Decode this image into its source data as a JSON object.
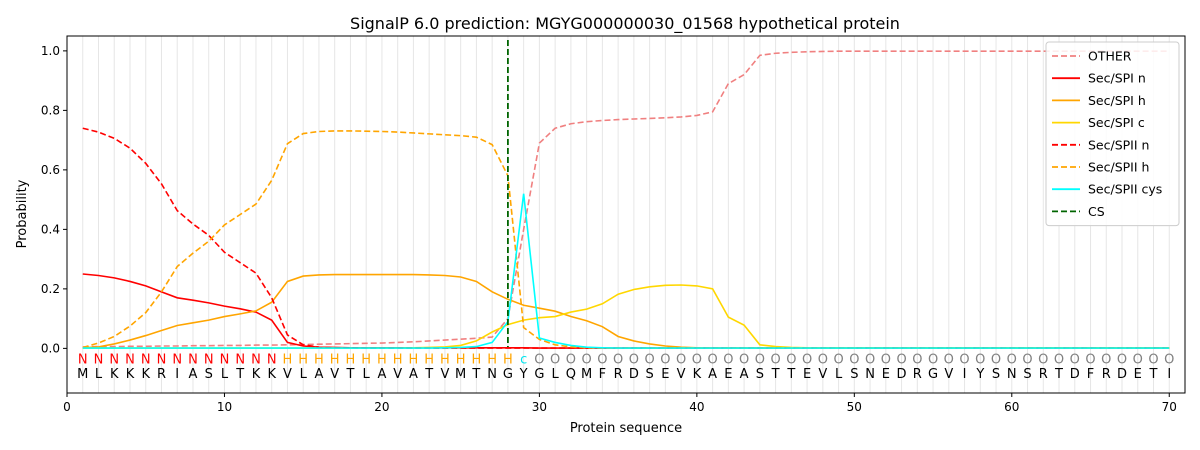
{
  "chart_data": {
    "type": "line",
    "title": "SignalP 6.0 prediction: MGYG000000030_01568 hypothetical protein",
    "xlabel": "Protein sequence",
    "ylabel": "Probability",
    "xlim": [
      0,
      71
    ],
    "ylim": [
      -0.15,
      1.05
    ],
    "xticks": [
      0,
      10,
      20,
      30,
      40,
      50,
      60,
      70
    ],
    "yticks": [
      0.0,
      0.2,
      0.4,
      0.6,
      0.8,
      1.0
    ],
    "vertical_grid_every_position": true,
    "legend_position": "top-right",
    "cleavage_site": 28,
    "sequence": [
      "M",
      "L",
      "K",
      "K",
      "K",
      "R",
      "I",
      "A",
      "S",
      "L",
      "T",
      "K",
      "K",
      "V",
      "L",
      "A",
      "V",
      "T",
      "L",
      "A",
      "V",
      "A",
      "T",
      "V",
      "M",
      "T",
      "N",
      "G",
      "Y",
      "G",
      "L",
      "Q",
      "M",
      "F",
      "R",
      "D",
      "S",
      "E",
      "V",
      "K",
      "A",
      "E",
      "A",
      "S",
      "T",
      "T",
      "E",
      "V",
      "L",
      "S",
      "N",
      "E",
      "D",
      "R",
      "G",
      "V",
      "I",
      "Y",
      "S",
      "N",
      "S",
      "R",
      "T",
      "D",
      "F",
      "R",
      "D",
      "E",
      "T",
      "I"
    ],
    "labels": [
      "N",
      "N",
      "N",
      "N",
      "N",
      "N",
      "N",
      "N",
      "N",
      "N",
      "N",
      "N",
      "N",
      "H",
      "H",
      "H",
      "H",
      "H",
      "H",
      "H",
      "H",
      "H",
      "H",
      "H",
      "H",
      "H",
      "H",
      "H",
      "C",
      "O",
      "O",
      "O",
      "O",
      "O",
      "O",
      "O",
      "O",
      "O",
      "O",
      "O",
      "O",
      "O",
      "O",
      "O",
      "O",
      "O",
      "O",
      "O",
      "O",
      "O",
      "O",
      "O",
      "O",
      "O",
      "O",
      "O",
      "O",
      "O",
      "O",
      "O",
      "O",
      "O",
      "O",
      "O",
      "O",
      "O",
      "O",
      "O",
      "O",
      "O"
    ],
    "label_colors": {
      "N": "#ff0000",
      "H": "#ffa500",
      "C": "#00e5ee",
      "O": "#808080"
    },
    "series": [
      {
        "name": "OTHER",
        "color": "#f08080",
        "dash": "6,3",
        "values": [
          0.005,
          0.006,
          0.006,
          0.007,
          0.007,
          0.008,
          0.008,
          0.009,
          0.009,
          0.01,
          0.01,
          0.011,
          0.011,
          0.012,
          0.013,
          0.014,
          0.015,
          0.016,
          0.017,
          0.018,
          0.02,
          0.022,
          0.025,
          0.028,
          0.031,
          0.034,
          0.038,
          0.1,
          0.4,
          0.69,
          0.74,
          0.755,
          0.762,
          0.766,
          0.769,
          0.771,
          0.773,
          0.775,
          0.778,
          0.783,
          0.795,
          0.89,
          0.92,
          0.985,
          0.992,
          0.995,
          0.997,
          0.998,
          0.999,
          0.999,
          0.999,
          0.999,
          0.999,
          0.999,
          0.999,
          0.999,
          0.999,
          0.999,
          0.999,
          0.999,
          0.999,
          0.999,
          0.999,
          0.999,
          0.999,
          0.999,
          0.999,
          0.999,
          0.999,
          0.999
        ]
      },
      {
        "name": "Sec/SPI n",
        "color": "#ff0000",
        "dash": "",
        "values": [
          0.25,
          0.245,
          0.237,
          0.225,
          0.21,
          0.19,
          0.17,
          0.162,
          0.153,
          0.142,
          0.133,
          0.122,
          0.095,
          0.02,
          0.008,
          0.004,
          0.003,
          0.002,
          0.002,
          0.002,
          0.002,
          0.002,
          0.002,
          0.002,
          0.002,
          0.002,
          0.002,
          0.002,
          0.002,
          0.001,
          0.001,
          0.001,
          0.001,
          0.001,
          0.001,
          0.001,
          0.001,
          0.001,
          0.001,
          0.001,
          0.001,
          0.001,
          0.001,
          0.001,
          0.001,
          0.001,
          0.001,
          0.001,
          0.001,
          0.001,
          0.001,
          0.001,
          0.001,
          0.001,
          0.001,
          0.001,
          0.001,
          0.001,
          0.001,
          0.001,
          0.001,
          0.001,
          0.001,
          0.001,
          0.001,
          0.001,
          0.001,
          0.001,
          0.001,
          0.001
        ]
      },
      {
        "name": "Sec/SPI h",
        "color": "#ffa500",
        "dash": "",
        "values": [
          0.002,
          0.005,
          0.015,
          0.028,
          0.043,
          0.06,
          0.077,
          0.086,
          0.095,
          0.107,
          0.116,
          0.126,
          0.155,
          0.225,
          0.243,
          0.247,
          0.248,
          0.248,
          0.248,
          0.248,
          0.248,
          0.248,
          0.247,
          0.245,
          0.24,
          0.225,
          0.19,
          0.165,
          0.145,
          0.135,
          0.125,
          0.107,
          0.093,
          0.073,
          0.04,
          0.025,
          0.015,
          0.008,
          0.004,
          0.002,
          0.001,
          0.001,
          0.001,
          0.001,
          0.001,
          0.001,
          0.001,
          0.001,
          0.001,
          0.001,
          0.001,
          0.001,
          0.001,
          0.001,
          0.001,
          0.001,
          0.001,
          0.001,
          0.001,
          0.001,
          0.001,
          0.001,
          0.001,
          0.001,
          0.001,
          0.001,
          0.001,
          0.001,
          0.001,
          0.001
        ]
      },
      {
        "name": "Sec/SPI c",
        "color": "#ffd700",
        "dash": "",
        "values": [
          0.001,
          0.001,
          0.001,
          0.001,
          0.001,
          0.001,
          0.001,
          0.001,
          0.001,
          0.001,
          0.001,
          0.001,
          0.001,
          0.001,
          0.001,
          0.001,
          0.001,
          0.001,
          0.001,
          0.001,
          0.001,
          0.002,
          0.003,
          0.005,
          0.01,
          0.025,
          0.055,
          0.08,
          0.095,
          0.103,
          0.107,
          0.122,
          0.132,
          0.15,
          0.182,
          0.198,
          0.207,
          0.212,
          0.213,
          0.21,
          0.2,
          0.105,
          0.078,
          0.012,
          0.006,
          0.003,
          0.002,
          0.001,
          0.001,
          0.001,
          0.001,
          0.001,
          0.001,
          0.001,
          0.001,
          0.001,
          0.001,
          0.001,
          0.001,
          0.001,
          0.001,
          0.001,
          0.001,
          0.001,
          0.001,
          0.001,
          0.001,
          0.001,
          0.001,
          0.001
        ]
      },
      {
        "name": "Sec/SPII n",
        "color": "#ff0000",
        "dash": "6,3",
        "values": [
          0.74,
          0.727,
          0.706,
          0.673,
          0.622,
          0.553,
          0.463,
          0.418,
          0.38,
          0.323,
          0.288,
          0.253,
          0.17,
          0.045,
          0.012,
          0.004,
          0.002,
          0.002,
          0.001,
          0.001,
          0.001,
          0.001,
          0.001,
          0.001,
          0.001,
          0.001,
          0.001,
          0.001,
          0.001,
          0.001,
          0.001,
          0.001,
          0.001,
          0.001,
          0.001,
          0.001,
          0.001,
          0.001,
          0.001,
          0.001,
          0.001,
          0.001,
          0.001,
          0.001,
          0.001,
          0.001,
          0.001,
          0.001,
          0.001,
          0.001,
          0.001,
          0.001,
          0.001,
          0.001,
          0.001,
          0.001,
          0.001,
          0.001,
          0.001,
          0.001,
          0.001,
          0.001,
          0.001,
          0.001,
          0.001,
          0.001,
          0.001,
          0.001,
          0.001,
          0.001
        ]
      },
      {
        "name": "Sec/SPII h",
        "color": "#ffa500",
        "dash": "6,3",
        "values": [
          0.003,
          0.018,
          0.04,
          0.075,
          0.12,
          0.19,
          0.275,
          0.32,
          0.36,
          0.415,
          0.45,
          0.485,
          0.565,
          0.688,
          0.722,
          0.729,
          0.731,
          0.731,
          0.73,
          0.729,
          0.727,
          0.724,
          0.721,
          0.718,
          0.715,
          0.71,
          0.685,
          0.58,
          0.07,
          0.03,
          0.012,
          0.005,
          0.002,
          0.001,
          0.001,
          0.001,
          0.001,
          0.001,
          0.001,
          0.001,
          0.001,
          0.001,
          0.001,
          0.001,
          0.001,
          0.001,
          0.001,
          0.001,
          0.001,
          0.001,
          0.001,
          0.001,
          0.001,
          0.001,
          0.001,
          0.001,
          0.001,
          0.001,
          0.001,
          0.001,
          0.001,
          0.001,
          0.001,
          0.001,
          0.001,
          0.001,
          0.001,
          0.001,
          0.001,
          0.001
        ]
      },
      {
        "name": "Sec/SPII cys",
        "color": "#00ffff",
        "dash": "",
        "values": [
          0.001,
          0.001,
          0.001,
          0.001,
          0.001,
          0.001,
          0.001,
          0.001,
          0.001,
          0.001,
          0.001,
          0.001,
          0.001,
          0.001,
          0.001,
          0.001,
          0.001,
          0.001,
          0.001,
          0.001,
          0.001,
          0.001,
          0.001,
          0.002,
          0.003,
          0.006,
          0.02,
          0.09,
          0.52,
          0.035,
          0.02,
          0.01,
          0.004,
          0.002,
          0.001,
          0.001,
          0.001,
          0.001,
          0.001,
          0.001,
          0.001,
          0.001,
          0.001,
          0.001,
          0.001,
          0.001,
          0.001,
          0.001,
          0.001,
          0.001,
          0.001,
          0.001,
          0.001,
          0.001,
          0.001,
          0.001,
          0.001,
          0.001,
          0.001,
          0.001,
          0.001,
          0.001,
          0.001,
          0.001,
          0.001,
          0.001,
          0.001,
          0.001,
          0.001,
          0.001
        ]
      }
    ],
    "cs_legend": {
      "name": "CS",
      "color": "#006400",
      "dash": "6,3"
    }
  }
}
